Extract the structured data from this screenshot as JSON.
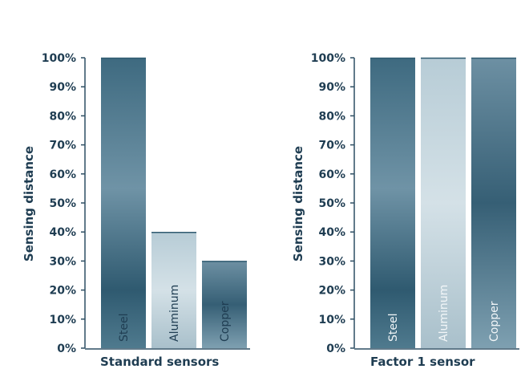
{
  "colors": {
    "text": "#1f3d52",
    "axis": "#2d4e63",
    "bar_dark": "#2f5a70",
    "bar_mid": "#7f9fb0",
    "bar_light": "#c9d9e1"
  },
  "chart_data": [
    {
      "type": "bar",
      "title": "",
      "xlabel": "Standard sensors",
      "ylabel": "Sensing distance",
      "ylim": [
        0,
        100
      ],
      "y_ticks": [
        "0%",
        "10%",
        "20%",
        "30%",
        "40%",
        "50%",
        "60%",
        "70%",
        "80%",
        "90%",
        "100%"
      ],
      "categories": [
        "Steel",
        "Aluminum",
        "Copper"
      ],
      "values": [
        100,
        40,
        30
      ],
      "grid": false,
      "legend": "none"
    },
    {
      "type": "bar",
      "title": "",
      "xlabel": "Factor 1 sensor",
      "ylabel": "Sensing distance",
      "ylim": [
        0,
        100
      ],
      "y_ticks": [
        "0%",
        "10%",
        "20%",
        "30%",
        "40%",
        "50%",
        "60%",
        "70%",
        "80%",
        "90%",
        "100%"
      ],
      "categories": [
        "Steel",
        "Aluminum",
        "Copper"
      ],
      "values": [
        100,
        100,
        100
      ],
      "grid": false,
      "legend": "none"
    }
  ]
}
